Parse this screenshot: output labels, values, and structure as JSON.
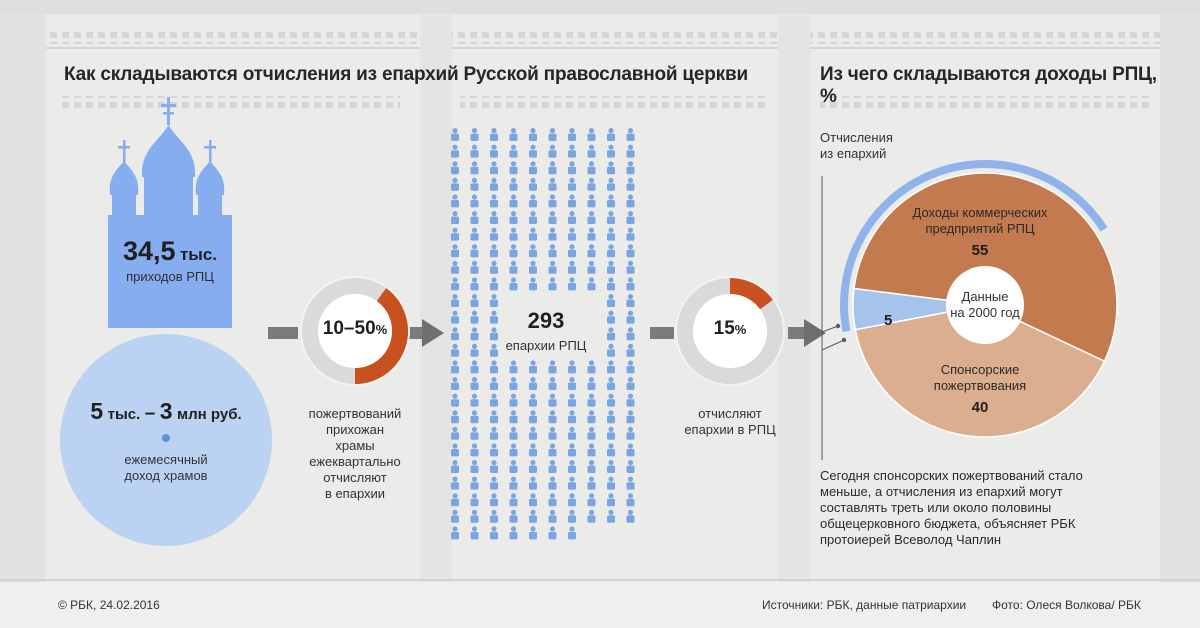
{
  "left_title": "Как складываются отчисления из епархий Русской православной церкви",
  "right_title": "Из чего складываются доходы РПЦ,",
  "right_title_unit": "%",
  "parishes": {
    "value": "34,5",
    "unit": "тыс.",
    "label": "приходов РПЦ"
  },
  "monthly_income": {
    "from": "5",
    "from_unit": "тыс.",
    "dash": "–",
    "to": "3",
    "to_unit": "млн руб.",
    "label_line1": "ежемесячный",
    "label_line2": "доход храмов"
  },
  "parish_share": {
    "value": "10–50",
    "unit": "%",
    "fraction_low": 0.1,
    "fraction_high": 0.5,
    "label_lines": [
      "пожертвований",
      "прихожан",
      "храмы",
      "ежеквартально",
      "отчисляют",
      "в епархии"
    ]
  },
  "dioceses": {
    "value": "293",
    "label": "епархии РПЦ"
  },
  "diocese_share": {
    "value": "15",
    "unit": "%",
    "fraction": 0.15,
    "label_lines": [
      "отчисляют",
      "епархии в РПЦ"
    ]
  },
  "pie_center": {
    "line1": "Данные",
    "line2": "на 2000 год"
  },
  "pie_legend_outer": {
    "line1": "Отчисления",
    "line2": "из епархий"
  },
  "chart_data": {
    "type": "pie",
    "title": "Из чего складываются доходы РПЦ, %",
    "slices": [
      {
        "label": "Доходы коммерческих предприятий РПЦ",
        "label_line1": "Доходы коммерческих",
        "label_line2": "предприятий РПЦ",
        "value": 55,
        "value_label": "55",
        "color": "#c27a4e"
      },
      {
        "label": "Спонсорские пожертвования",
        "label_line1": "Спонсорские",
        "label_line2": "пожертвования",
        "value": 40,
        "value_label": "40",
        "color": "#dcae90"
      },
      {
        "label": "Отчисления из епархий",
        "value": 5,
        "value_label": "5",
        "color": "#a6c3eb"
      }
    ]
  },
  "quote_lines": [
    "Сегодня спонсорских пожертвований стало",
    "меньше, а отчисления из епархий могут",
    "составлять треть или около половины",
    "общецерковного бюджета, объясняет РБК",
    "протоиерей Всеволод Чаплин"
  ],
  "footer": {
    "copyright": "© РБК, 24.02.2016",
    "sources": "Источники: РБК, данные патриархии",
    "photo": "Фото: Олеся Волкова/ РБК"
  },
  "colors": {
    "accent": "#c7511f",
    "blue": "#7aa5e0",
    "light_blue": "#a6c3eb",
    "ring_gray": "#dcdcdc",
    "arrow": "#6f6f6f"
  }
}
